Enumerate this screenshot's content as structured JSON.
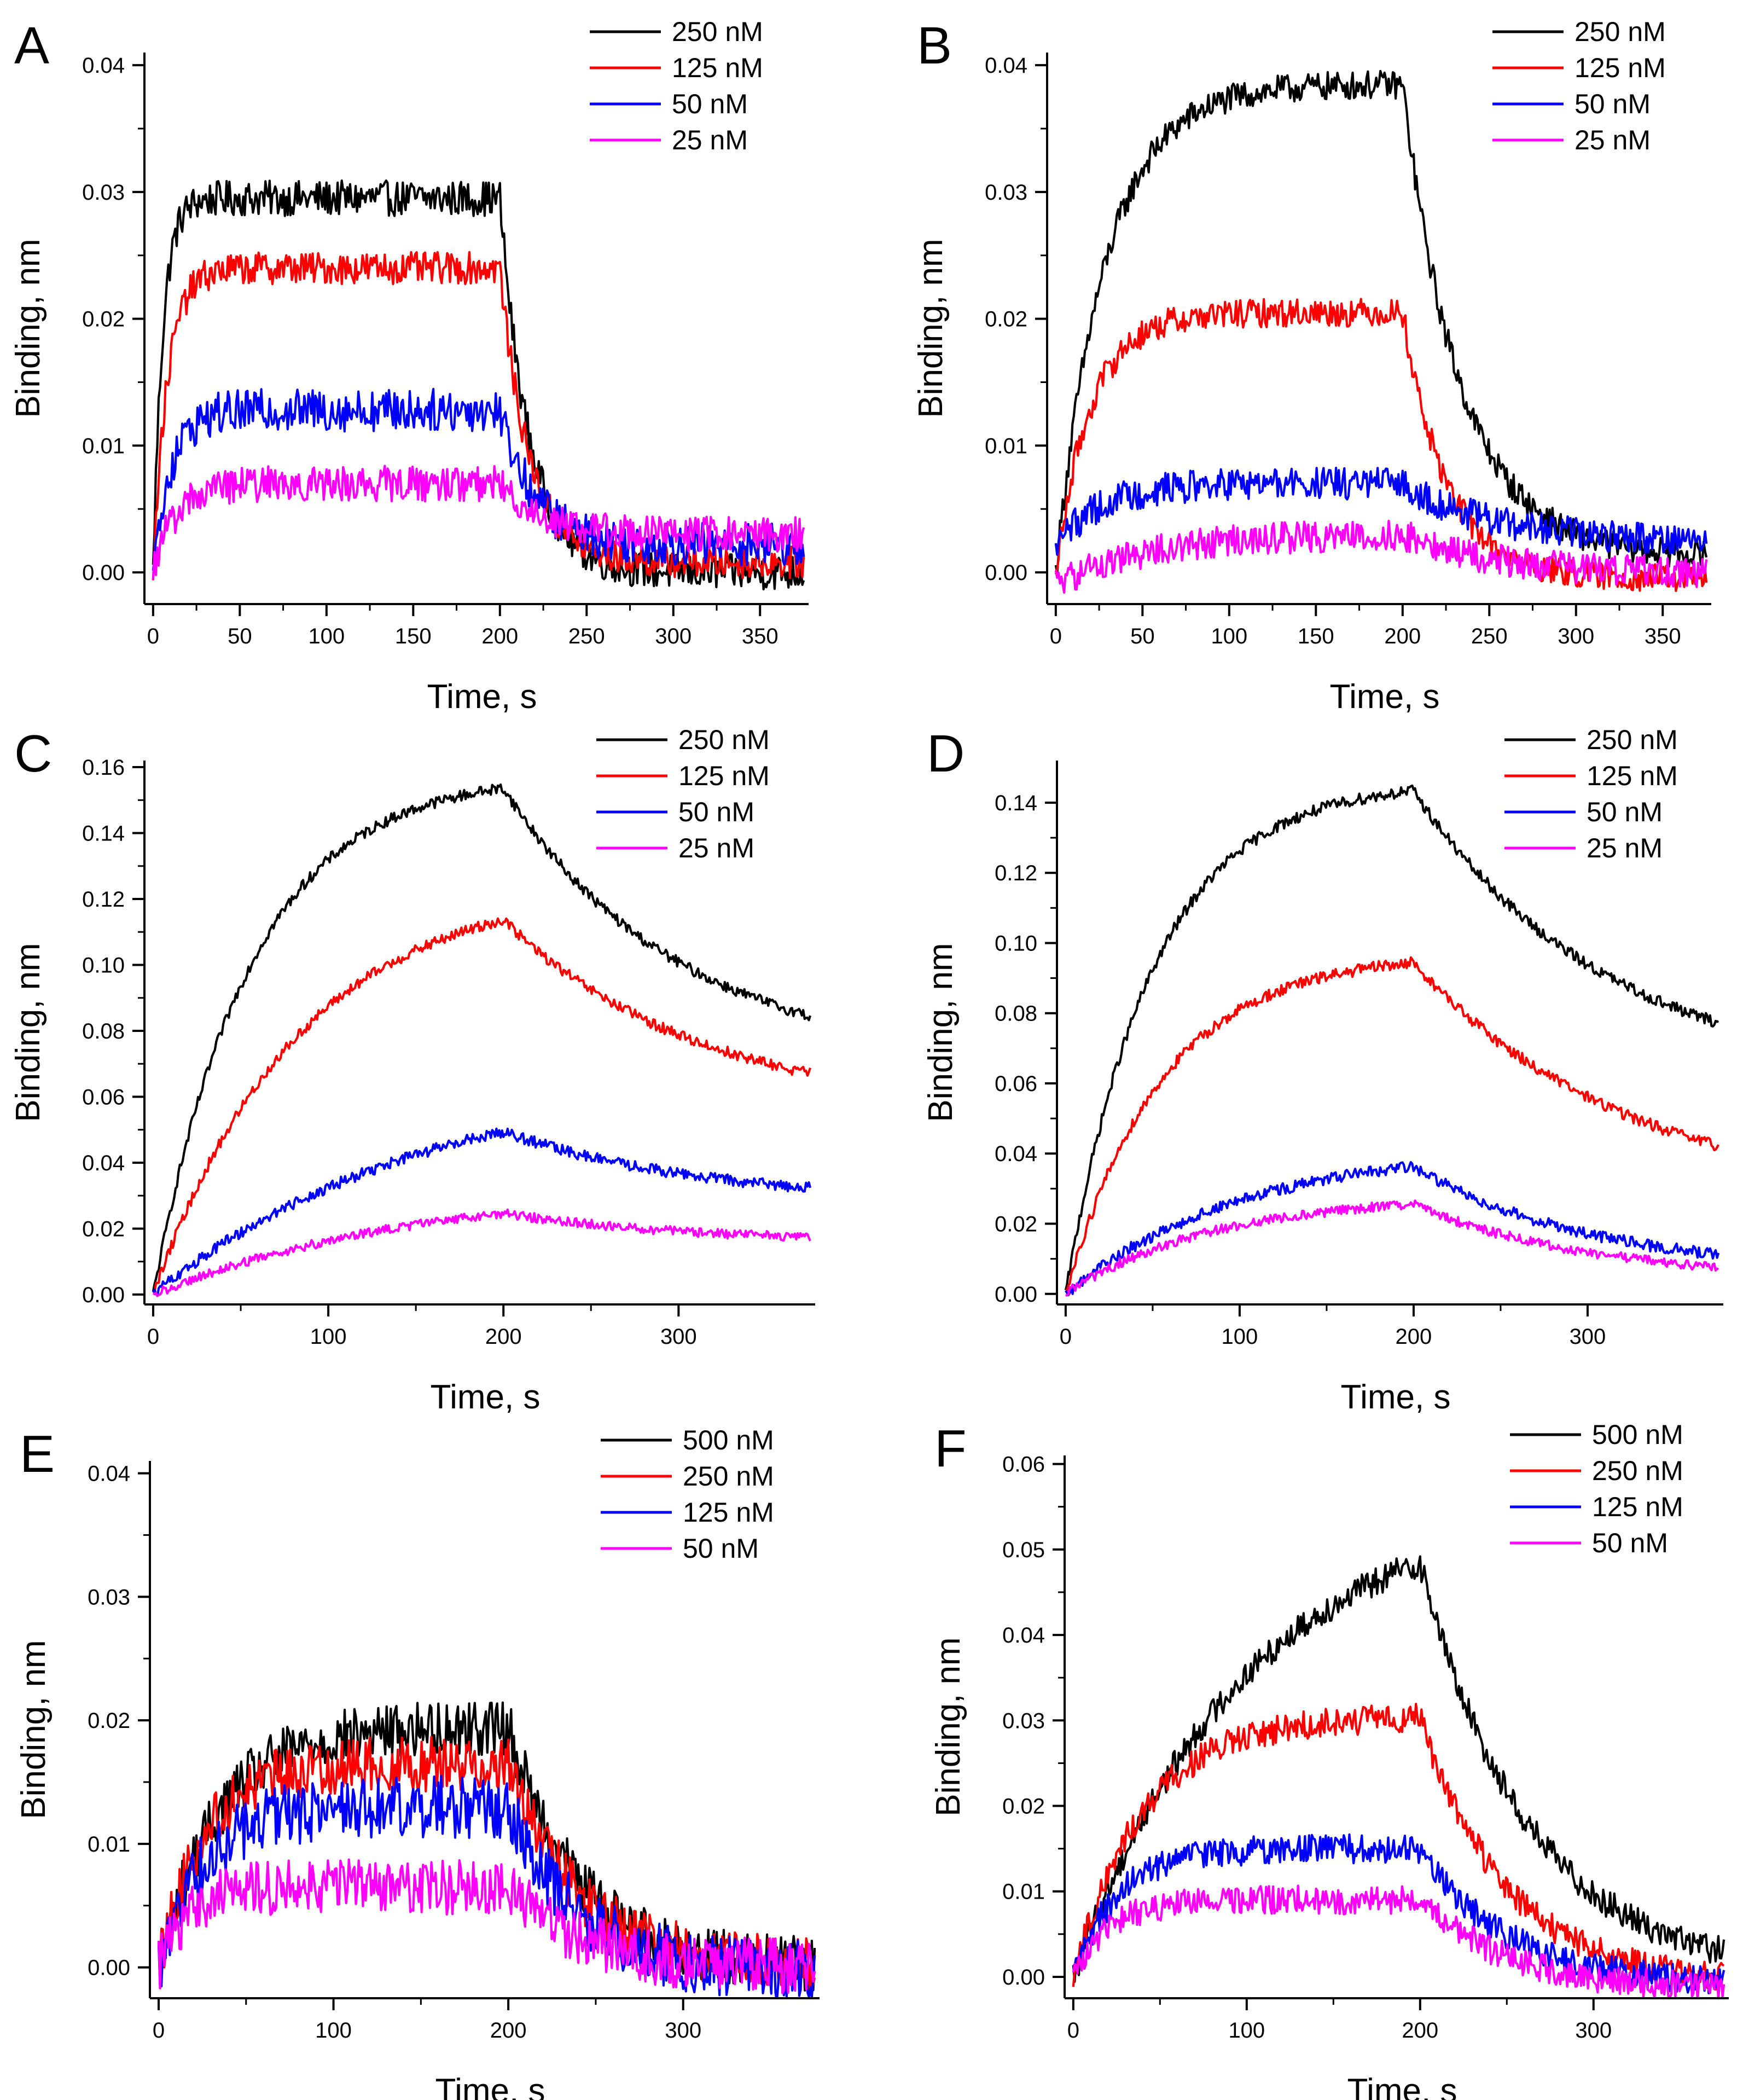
{
  "chart_data": [
    {
      "panel": "A",
      "type": "line",
      "xlabel": "Time, s",
      "ylabel": "Binding, nm",
      "xlim": [
        -5,
        378
      ],
      "ylim": [
        -0.0025,
        0.041
      ],
      "xticks": [
        0,
        50,
        100,
        150,
        200,
        250,
        300,
        350
      ],
      "xtick_labels": [
        "0",
        "50",
        "100",
        "150",
        "200",
        "250",
        "300",
        "350"
      ],
      "yticks": [
        0,
        0.01,
        0.02,
        0.03,
        0.04
      ],
      "ytick_labels": [
        "0.00",
        "0.01",
        "0.02",
        "0.03",
        "0.04"
      ],
      "legend_position": "top-right",
      "series": [
        {
          "name": "250 nM",
          "color": "#000000",
          "plateau": 0.0295,
          "kon": 0.18,
          "start": 0.0,
          "end": 0.0,
          "koff": 0.06,
          "noise": 0.001
        },
        {
          "name": "125 nM",
          "color": "#ff0000",
          "plateau": 0.024,
          "kon": 0.12,
          "start": 0.0,
          "end": 0.0008,
          "koff": 0.06,
          "noise": 0.0009
        },
        {
          "name": "50 nM",
          "color": "#0000ff",
          "plateau": 0.0128,
          "kon": 0.1,
          "start": 0.0,
          "end": 0.0022,
          "koff": 0.05,
          "noise": 0.0012
        },
        {
          "name": "25 nM",
          "color": "#ff00ff",
          "plateau": 0.007,
          "kon": 0.08,
          "start": 0.0,
          "end": 0.003,
          "koff": 0.04,
          "noise": 0.001
        }
      ]
    },
    {
      "panel": "B",
      "type": "line",
      "xlabel": "Time, s",
      "ylabel": "Binding, nm",
      "xlim": [
        -5,
        378
      ],
      "ylim": [
        -0.0025,
        0.041
      ],
      "xticks": [
        0,
        50,
        100,
        150,
        200,
        250,
        300,
        350
      ],
      "xtick_labels": [
        "0",
        "50",
        "100",
        "150",
        "200",
        "250",
        "300",
        "350"
      ],
      "yticks": [
        0,
        0.01,
        0.02,
        0.03,
        0.04
      ],
      "ytick_labels": [
        "0.00",
        "0.01",
        "0.02",
        "0.03",
        "0.04"
      ],
      "legend_position": "top-right",
      "series": [
        {
          "name": "250 nM",
          "color": "#000000",
          "plateau": 0.0385,
          "kon": 0.035,
          "start": 0.0,
          "end": 0.0012,
          "koff": 0.03,
          "noise": 0.0008
        },
        {
          "name": "125 nM",
          "color": "#ff0000",
          "plateau": 0.0205,
          "kon": 0.05,
          "start": 0.0,
          "end": -0.0005,
          "koff": 0.04,
          "noise": 0.0008
        },
        {
          "name": "50 nM",
          "color": "#0000ff",
          "plateau": 0.007,
          "kon": 0.04,
          "start": 0.002,
          "end": 0.0025,
          "koff": 0.02,
          "noise": 0.0009
        },
        {
          "name": "25 nM",
          "color": "#ff00ff",
          "plateau": 0.003,
          "kon": 0.02,
          "start": -0.001,
          "end": 0.0,
          "koff": 0.02,
          "noise": 0.0009
        }
      ]
    },
    {
      "panel": "C",
      "type": "line",
      "xlabel": "Time, s",
      "ylabel": "Binding, nm",
      "xlim": [
        -5,
        378
      ],
      "ylim": [
        -0.003,
        0.162
      ],
      "xticks": [
        0,
        100,
        200,
        300
      ],
      "xtick_labels": [
        "0",
        "100",
        "200",
        "300"
      ],
      "yticks": [
        0,
        0.02,
        0.04,
        0.06,
        0.08,
        0.1,
        0.12,
        0.14,
        0.16
      ],
      "ytick_labels": [
        "0.00",
        "0.02",
        "0.04",
        "0.06",
        "0.08",
        "0.10",
        "0.12",
        "0.14",
        "0.16"
      ],
      "legend_position": "top-right",
      "series": [
        {
          "name": "250 nM",
          "color": "#000000",
          "plateau": 0.158,
          "kon": 0.018,
          "start": 0.0,
          "end": 0.07,
          "koff": 0.01,
          "noise": 0.0012
        },
        {
          "name": "125 nM",
          "color": "#ff0000",
          "plateau": 0.125,
          "kon": 0.012,
          "start": 0.0,
          "end": 0.055,
          "koff": 0.009,
          "noise": 0.0012
        },
        {
          "name": "50 nM",
          "color": "#0000ff",
          "plateau": 0.068,
          "kon": 0.0065,
          "start": 0.0,
          "end": 0.028,
          "koff": 0.009,
          "noise": 0.0012
        },
        {
          "name": "25 nM",
          "color": "#ff00ff",
          "plateau": 0.034,
          "kon": 0.0065,
          "start": 0.0,
          "end": 0.016,
          "koff": 0.01,
          "noise": 0.001
        }
      ]
    },
    {
      "panel": "D",
      "type": "line",
      "xlabel": "Time, s",
      "ylabel": "Binding, nm",
      "xlim": [
        -5,
        378
      ],
      "ylim": [
        -0.003,
        0.152
      ],
      "xticks": [
        0,
        100,
        200,
        300
      ],
      "xtick_labels": [
        "0",
        "100",
        "200",
        "300"
      ],
      "yticks": [
        0,
        0.02,
        0.04,
        0.06,
        0.08,
        0.1,
        0.12,
        0.14
      ],
      "ytick_labels": [
        "0.00",
        "0.02",
        "0.04",
        "0.06",
        "0.08",
        "0.10",
        "0.12",
        "0.14"
      ],
      "legend_position": "top-right",
      "series": [
        {
          "name": "250 nM",
          "color": "#000000",
          "plateau": 0.146,
          "kon": 0.02,
          "start": 0.0,
          "end": 0.06,
          "koff": 0.009,
          "noise": 0.0012
        },
        {
          "name": "125 nM",
          "color": "#ff0000",
          "plateau": 0.097,
          "kon": 0.018,
          "start": 0.0,
          "end": 0.025,
          "koff": 0.008,
          "noise": 0.0012
        },
        {
          "name": "50 nM",
          "color": "#0000ff",
          "plateau": 0.042,
          "kon": 0.01,
          "start": 0.0,
          "end": 0.006,
          "koff": 0.01,
          "noise": 0.0012
        },
        {
          "name": "25 nM",
          "color": "#ff00ff",
          "plateau": 0.028,
          "kon": 0.012,
          "start": 0.0,
          "end": 0.004,
          "koff": 0.01,
          "noise": 0.001
        }
      ]
    },
    {
      "panel": "E",
      "type": "line",
      "xlabel": "Time, s",
      "ylabel": "Binding, nm",
      "xlim": [
        -5,
        378
      ],
      "ylim": [
        -0.0025,
        0.041
      ],
      "xticks": [
        0,
        100,
        200,
        300
      ],
      "xtick_labels": [
        "0",
        "100",
        "200",
        "300"
      ],
      "yticks": [
        0,
        0.01,
        0.02,
        0.03,
        0.04
      ],
      "ytick_labels": [
        "0.00",
        "0.01",
        "0.02",
        "0.03",
        "0.04"
      ],
      "legend_position": "top-right",
      "series": [
        {
          "name": "500 nM",
          "color": "#000000",
          "plateau": 0.0195,
          "kon": 0.03,
          "start": 0.0,
          "end": 0.0,
          "koff": 0.025,
          "noise": 0.0016
        },
        {
          "name": "250 nM",
          "color": "#ff0000",
          "plateau": 0.0165,
          "kon": 0.04,
          "start": 0.0,
          "end": 0.0,
          "koff": 0.025,
          "noise": 0.0016
        },
        {
          "name": "125 nM",
          "color": "#0000ff",
          "plateau": 0.013,
          "kon": 0.04,
          "start": 0.0,
          "end": -0.0005,
          "koff": 0.025,
          "noise": 0.0018
        },
        {
          "name": "50 nM",
          "color": "#ff00ff",
          "plateau": 0.0065,
          "kon": 0.06,
          "start": 0.0,
          "end": 0.0,
          "koff": 0.025,
          "noise": 0.0016
        }
      ]
    },
    {
      "panel": "F",
      "type": "line",
      "xlabel": "Time, s",
      "ylabel": "Binding, nm",
      "xlim": [
        -5,
        378
      ],
      "ylim": [
        -0.0025,
        0.061
      ],
      "xticks": [
        0,
        100,
        200,
        300
      ],
      "xtick_labels": [
        "0",
        "100",
        "200",
        "300"
      ],
      "yticks": [
        0,
        0.01,
        0.02,
        0.03,
        0.04,
        0.05,
        0.06
      ],
      "ytick_labels": [
        "0.00",
        "0.01",
        "0.02",
        "0.03",
        "0.04",
        "0.05",
        "0.06"
      ],
      "legend_position": "top-right",
      "series": [
        {
          "name": "500 nM",
          "color": "#000000",
          "plateau": 0.056,
          "kon": 0.01,
          "start": 0.0,
          "end": 0.0,
          "koff": 0.016,
          "noise": 0.0012
        },
        {
          "name": "250 nM",
          "color": "#ff0000",
          "plateau": 0.0305,
          "kon": 0.025,
          "start": 0.0,
          "end": -0.001,
          "koff": 0.02,
          "noise": 0.0012
        },
        {
          "name": "125 nM",
          "color": "#0000ff",
          "plateau": 0.015,
          "kon": 0.04,
          "start": 0.0,
          "end": -0.001,
          "koff": 0.02,
          "noise": 0.0012
        },
        {
          "name": "50 nM",
          "color": "#ff00ff",
          "plateau": 0.009,
          "kon": 0.05,
          "start": 0.0,
          "end": -0.0015,
          "koff": 0.02,
          "noise": 0.0012
        }
      ]
    }
  ]
}
